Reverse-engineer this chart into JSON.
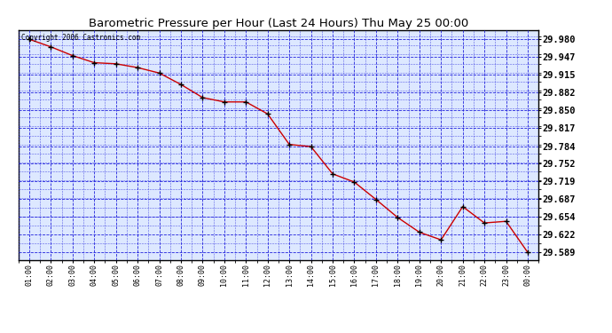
{
  "title": "Barometric Pressure per Hour (Last 24 Hours) Thu May 25 00:00",
  "copyright": "Copyright 2006 Castronics.com",
  "x_labels": [
    "01:00",
    "02:00",
    "03:00",
    "04:00",
    "05:00",
    "06:00",
    "07:00",
    "08:00",
    "09:00",
    "10:00",
    "11:00",
    "12:00",
    "13:00",
    "14:00",
    "15:00",
    "16:00",
    "17:00",
    "18:00",
    "19:00",
    "20:00",
    "21:00",
    "22:00",
    "23:00",
    "00:00"
  ],
  "y_values": [
    29.98,
    29.966,
    29.95,
    29.937,
    29.935,
    29.928,
    29.918,
    29.897,
    29.873,
    29.865,
    29.865,
    29.843,
    29.787,
    29.783,
    29.733,
    29.718,
    29.686,
    29.653,
    29.626,
    29.612,
    29.673,
    29.643,
    29.646,
    29.589
  ],
  "y_tick_labels": [
    "29.589",
    "29.622",
    "29.654",
    "29.687",
    "29.719",
    "29.752",
    "29.784",
    "29.817",
    "29.850",
    "29.882",
    "29.915",
    "29.947",
    "29.980"
  ],
  "y_tick_values": [
    29.589,
    29.622,
    29.654,
    29.687,
    29.719,
    29.752,
    29.784,
    29.817,
    29.85,
    29.882,
    29.915,
    29.947,
    29.98
  ],
  "line_color": "#cc0000",
  "marker_color": "#000000",
  "bg_color": "#ffffff",
  "plot_bg_color": "#ffffff",
  "grid_color": "#2222dd",
  "title_color": "#000000",
  "border_color": "#000000",
  "ylim_min": 29.5755,
  "ylim_max": 29.997
}
